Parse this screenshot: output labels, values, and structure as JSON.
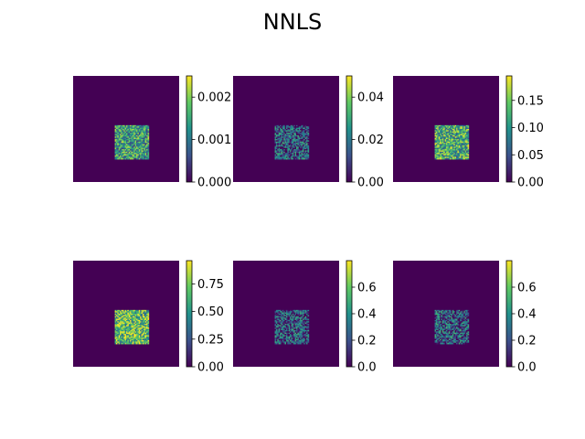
{
  "chart_data": {
    "type": "heatmap",
    "title": "NNLS",
    "colormap": "viridis",
    "colormap_stops": [
      "#440154",
      "#3b528b",
      "#21918c",
      "#5ec962",
      "#fde725"
    ],
    "background_color": "#440154",
    "grid_size": 28,
    "nonzero_region": {
      "rows": [
        13,
        22
      ],
      "cols": [
        11,
        20
      ]
    },
    "panels": [
      {
        "vmin": 0,
        "vmax": 0.0025,
        "ticks": [
          0.0,
          0.001,
          0.002
        ],
        "tick_labels": [
          "0.000",
          "0.001",
          "0.002"
        ],
        "typical_level": 0.55
      },
      {
        "vmin": 0,
        "vmax": 0.05,
        "ticks": [
          0.0,
          0.02,
          0.04
        ],
        "tick_labels": [
          "0.00",
          "0.02",
          "0.04"
        ],
        "typical_level": 0.3
      },
      {
        "vmin": 0,
        "vmax": 0.195,
        "ticks": [
          0.0,
          0.05,
          0.1,
          0.15
        ],
        "tick_labels": [
          "0.00",
          "0.05",
          "0.10",
          "0.15"
        ],
        "typical_level": 0.62
      },
      {
        "vmin": 0,
        "vmax": 0.96,
        "ticks": [
          0.0,
          0.25,
          0.5,
          0.75
        ],
        "tick_labels": [
          "0.00",
          "0.25",
          "0.50",
          "0.75"
        ],
        "typical_level": 0.68
      },
      {
        "vmin": 0,
        "vmax": 0.8,
        "ticks": [
          0.0,
          0.2,
          0.4,
          0.6
        ],
        "tick_labels": [
          "0.0",
          "0.2",
          "0.4",
          "0.6"
        ],
        "typical_level": 0.28
      },
      {
        "vmin": 0,
        "vmax": 0.8,
        "ticks": [
          0.0,
          0.2,
          0.4,
          0.6
        ],
        "tick_labels": [
          "0.0",
          "0.2",
          "0.4",
          "0.6"
        ],
        "typical_level": 0.3
      }
    ]
  }
}
